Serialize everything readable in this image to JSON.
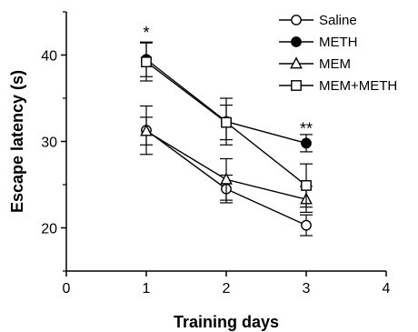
{
  "chart_data": {
    "type": "line",
    "xlabel": "Training days",
    "ylabel": "Escape latency (s)",
    "xlim": [
      0,
      4
    ],
    "ylim": [
      15,
      45
    ],
    "xticks": [
      "0",
      "1",
      "2",
      "3",
      "4"
    ],
    "yticks": [
      "20",
      "30",
      "40"
    ],
    "x": [
      1,
      2,
      3
    ],
    "legend_position": "top-right",
    "grid": false,
    "series": [
      {
        "name": "Saline",
        "marker": "circle-open",
        "values": [
          31.3,
          24.5,
          20.3
        ],
        "errors": [
          2.8,
          1.6,
          1.2
        ]
      },
      {
        "name": "METH",
        "marker": "circle-filled",
        "values": [
          39.5,
          32.3,
          29.8
        ],
        "errors": [
          2.0,
          2.7,
          1.0
        ]
      },
      {
        "name": "MEM",
        "marker": "triangle-open",
        "values": [
          31.2,
          25.6,
          23.3
        ],
        "errors": [
          1.6,
          2.4,
          1.5
        ]
      },
      {
        "name": "MEM+METH",
        "marker": "square-open",
        "values": [
          39.2,
          32.2,
          24.9
        ],
        "errors": [
          2.2,
          2.0,
          2.5
        ]
      }
    ],
    "annotations": [
      {
        "text": "*",
        "x": 1,
        "y": 42.6
      },
      {
        "text": "**",
        "x": 3,
        "y": 31.5
      }
    ]
  }
}
